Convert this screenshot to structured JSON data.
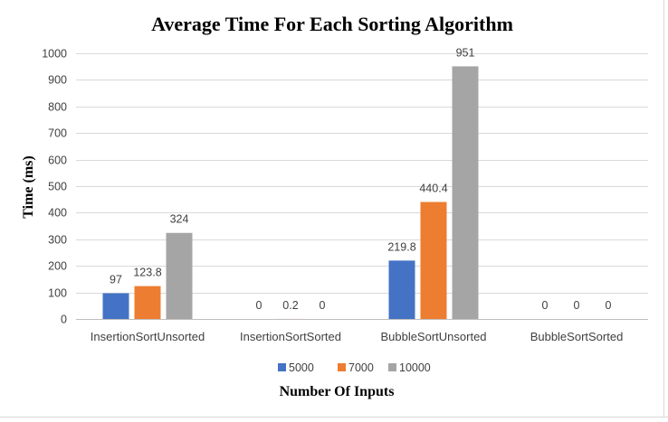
{
  "chart_data": {
    "type": "bar",
    "title": "Average Time For Each Sorting Algorithm",
    "xlabel": "Number Of Inputs",
    "ylabel": "Time (ms)",
    "categories": [
      "InsertionSortUnsorted",
      "InsertionSortSorted",
      "BubbleSortUnsorted",
      "BubbleSortSorted"
    ],
    "series": [
      {
        "name": "5000",
        "color": "#4472c4",
        "values": [
          97,
          0,
          219.8,
          0
        ],
        "labels": [
          "97",
          "0",
          "219.8",
          "0"
        ]
      },
      {
        "name": "7000",
        "color": "#ed7d31",
        "values": [
          123.8,
          0.2,
          440.4,
          0
        ],
        "labels": [
          "123.8",
          "0.2",
          "440.4",
          "0"
        ]
      },
      {
        "name": "10000",
        "color": "#a5a5a5",
        "values": [
          324,
          0,
          951,
          0
        ],
        "labels": [
          "324",
          "0",
          "951",
          "0"
        ]
      }
    ],
    "yticks": [
      0,
      100,
      200,
      300,
      400,
      500,
      600,
      700,
      800,
      900,
      1000
    ],
    "ylim": [
      0,
      1000
    ],
    "grid": true,
    "legend": "bottom"
  }
}
